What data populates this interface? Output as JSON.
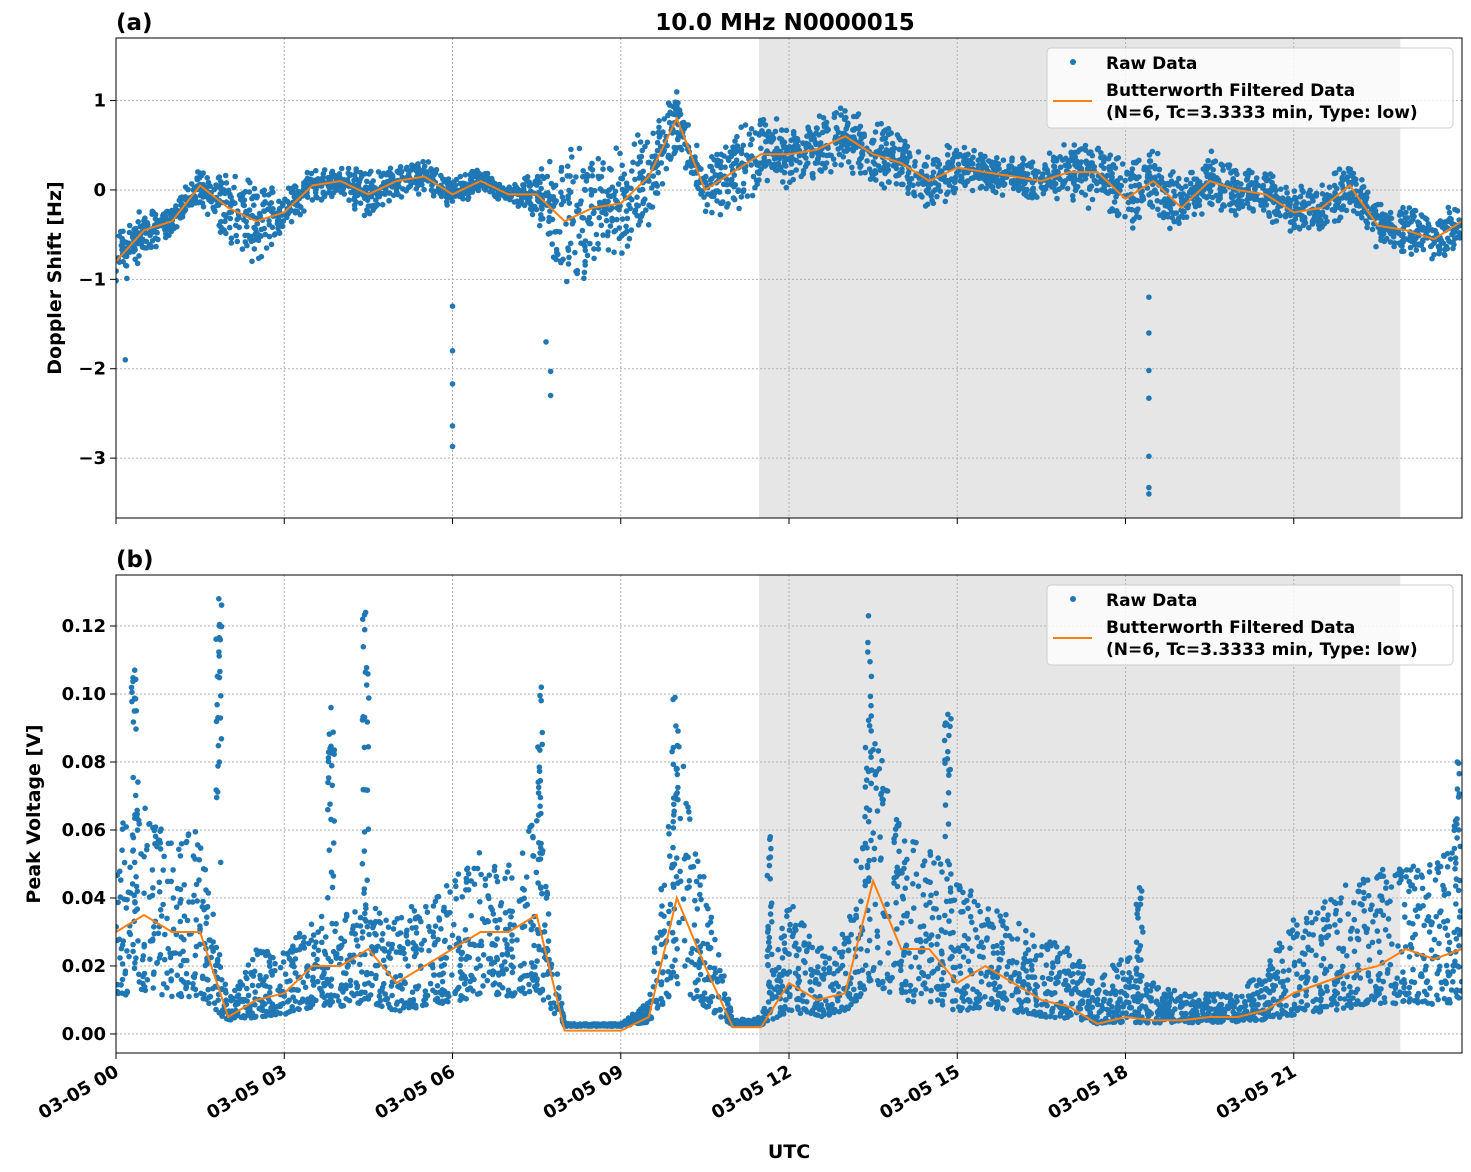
{
  "chart_data": [
    {
      "panel_label": "(a)",
      "type": "scatter+line",
      "title": "10.0 MHz N0000015",
      "xlabel": "",
      "ylabel": "Doppler Shift [Hz]",
      "ylim": [
        -3.67,
        1.7
      ],
      "xlim": [
        "03-05 00:00",
        "03-06 00:00"
      ],
      "yticks": [
        1,
        0,
        -1,
        -2,
        -3
      ],
      "ytick_labels": [
        "1",
        "0",
        "−1",
        "−2",
        "−3"
      ],
      "xticks": [
        "03-05 00:00",
        "03-05 03:00",
        "03-05 06:00",
        "03-05 09:00",
        "03-05 12:00",
        "03-05 15:00",
        "03-05 18:00",
        "03-05 21:00"
      ],
      "grid": true,
      "shaded_span": [
        "03-05 11:28",
        "03-05 22:54"
      ],
      "legend_position": "top-right",
      "legend": [
        "Raw Data",
        "Butterworth Filtered Data",
        "(N=6, Tc=3.3333 min, Type: low)"
      ],
      "colors": {
        "raw": "#1f77b4",
        "filtered": "#ff7f0e",
        "shade": "#e6e6e6"
      },
      "x": [
        "03-05 00:00",
        "03-05 00:30",
        "03-05 01:00",
        "03-05 01:30",
        "03-05 02:00",
        "03-05 02:30",
        "03-05 03:00",
        "03-05 03:30",
        "03-05 04:00",
        "03-05 04:30",
        "03-05 05:00",
        "03-05 05:30",
        "03-05 06:00",
        "03-05 06:30",
        "03-05 07:00",
        "03-05 07:30",
        "03-05 08:00",
        "03-05 08:30",
        "03-05 09:00",
        "03-05 09:30",
        "03-05 10:00",
        "03-05 10:30",
        "03-05 11:00",
        "03-05 11:30",
        "03-05 12:00",
        "03-05 12:30",
        "03-05 13:00",
        "03-05 13:30",
        "03-05 14:00",
        "03-05 14:30",
        "03-05 15:00",
        "03-05 15:30",
        "03-05 16:00",
        "03-05 16:30",
        "03-05 17:00",
        "03-05 17:30",
        "03-05 18:00",
        "03-05 18:30",
        "03-05 19:00",
        "03-05 19:30",
        "03-05 20:00",
        "03-05 20:30",
        "03-05 21:00",
        "03-05 21:30",
        "03-05 22:00",
        "03-05 22:30",
        "03-05 23:00",
        "03-05 23:30",
        "03-06 00:00"
      ],
      "series": [
        {
          "name": "Butterworth Filtered Data",
          "values": [
            -0.8,
            -0.45,
            -0.35,
            0.05,
            -0.2,
            -0.35,
            -0.25,
            0.05,
            0.1,
            -0.05,
            0.1,
            0.15,
            -0.05,
            0.1,
            -0.05,
            -0.05,
            -0.35,
            -0.2,
            -0.15,
            0.15,
            0.8,
            0.0,
            0.2,
            0.4,
            0.4,
            0.45,
            0.6,
            0.4,
            0.3,
            0.1,
            0.25,
            0.2,
            0.15,
            0.1,
            0.2,
            0.2,
            -0.1,
            0.1,
            -0.2,
            0.1,
            0.0,
            -0.05,
            -0.25,
            -0.2,
            0.05,
            -0.4,
            -0.45,
            -0.55,
            -0.35
          ]
        },
        {
          "name": "Raw Data",
          "spread": [
            0.5,
            0.3,
            0.2,
            0.2,
            0.5,
            0.5,
            0.3,
            0.2,
            0.2,
            0.3,
            0.2,
            0.2,
            0.2,
            0.15,
            0.1,
            0.3,
            0.9,
            0.8,
            0.7,
            0.6,
            0.4,
            0.3,
            0.6,
            0.5,
            0.4,
            0.4,
            0.45,
            0.4,
            0.35,
            0.35,
            0.3,
            0.25,
            0.25,
            0.3,
            0.35,
            0.45,
            0.45,
            0.4,
            0.35,
            0.35,
            0.3,
            0.3,
            0.3,
            0.3,
            0.35,
            0.3,
            0.3,
            0.35,
            0.3
          ],
          "outliers": [
            [
              "03-05 06:00",
              -2.87
            ],
            [
              "03-05 06:00",
              -2.64
            ],
            [
              "03-05 06:00",
              -2.17
            ],
            [
              "03-05 06:00",
              -1.8
            ],
            [
              "03-05 06:00",
              -1.3
            ],
            [
              "03-05 07:45",
              -2.3
            ],
            [
              "03-05 07:45",
              -2.03
            ],
            [
              "03-05 07:40",
              -1.7
            ],
            [
              "03-05 18:25",
              -3.4
            ],
            [
              "03-05 18:25",
              -3.33
            ],
            [
              "03-05 18:25",
              -2.98
            ],
            [
              "03-05 18:25",
              -2.33
            ],
            [
              "03-05 18:25",
              -2.02
            ],
            [
              "03-05 18:25",
              -1.6
            ],
            [
              "03-05 18:25",
              -1.2
            ],
            [
              "03-05 00:10",
              -1.9
            ]
          ]
        }
      ]
    },
    {
      "panel_label": "(b)",
      "type": "scatter+line",
      "xlabel": "UTC",
      "ylabel": "Peak Voltage [V]",
      "ylim": [
        -0.0056,
        0.135
      ],
      "xlim": [
        "03-05 00:00",
        "03-06 00:00"
      ],
      "yticks": [
        0,
        0.02,
        0.04,
        0.06,
        0.08,
        0.1,
        0.12
      ],
      "ytick_labels": [
        "0.00",
        "0.02",
        "0.04",
        "0.06",
        "0.08",
        "0.10",
        "0.12"
      ],
      "xticks": [
        "03-05 00:00",
        "03-05 03:00",
        "03-05 06:00",
        "03-05 09:00",
        "03-05 12:00",
        "03-05 15:00",
        "03-05 18:00",
        "03-05 21:00"
      ],
      "xtick_labels": [
        "03-05 00",
        "03-05 03",
        "03-05 06",
        "03-05 09",
        "03-05 12",
        "03-05 15",
        "03-05 18",
        "03-05 21"
      ],
      "grid": true,
      "shaded_span": [
        "03-05 11:28",
        "03-05 22:54"
      ],
      "legend_position": "top-right",
      "legend": [
        "Raw Data",
        "Butterworth Filtered Data",
        "(N=6, Tc=3.3333 min, Type: low)"
      ],
      "colors": {
        "raw": "#1f77b4",
        "filtered": "#ff7f0e",
        "shade": "#e6e6e6"
      },
      "x": [
        "03-05 00:00",
        "03-05 00:30",
        "03-05 01:00",
        "03-05 01:30",
        "03-05 02:00",
        "03-05 02:30",
        "03-05 03:00",
        "03-05 03:30",
        "03-05 04:00",
        "03-05 04:30",
        "03-05 05:00",
        "03-05 05:30",
        "03-05 06:00",
        "03-05 06:30",
        "03-05 07:00",
        "03-05 07:30",
        "03-05 08:00",
        "03-05 08:30",
        "03-05 09:00",
        "03-05 09:30",
        "03-05 10:00",
        "03-05 10:30",
        "03-05 11:00",
        "03-05 11:30",
        "03-05 12:00",
        "03-05 12:30",
        "03-05 13:00",
        "03-05 13:30",
        "03-05 14:00",
        "03-05 14:30",
        "03-05 15:00",
        "03-05 15:30",
        "03-05 16:00",
        "03-05 16:30",
        "03-05 17:00",
        "03-05 17:30",
        "03-05 18:00",
        "03-05 18:30",
        "03-05 19:00",
        "03-05 19:30",
        "03-05 20:00",
        "03-05 20:30",
        "03-05 21:00",
        "03-05 21:30",
        "03-05 22:00",
        "03-05 22:30",
        "03-05 23:00",
        "03-05 23:30",
        "03-06 00:00"
      ],
      "series": [
        {
          "name": "Butterworth Filtered Data",
          "values": [
            0.03,
            0.035,
            0.03,
            0.03,
            0.005,
            0.01,
            0.012,
            0.02,
            0.02,
            0.025,
            0.015,
            0.02,
            0.025,
            0.03,
            0.03,
            0.035,
            0.001,
            0.001,
            0.001,
            0.005,
            0.04,
            0.02,
            0.002,
            0.002,
            0.015,
            0.01,
            0.012,
            0.045,
            0.025,
            0.025,
            0.015,
            0.02,
            0.015,
            0.01,
            0.008,
            0.003,
            0.005,
            0.004,
            0.004,
            0.005,
            0.005,
            0.007,
            0.012,
            0.015,
            0.018,
            0.02,
            0.025,
            0.022,
            0.025
          ]
        },
        {
          "name": "Raw Data",
          "upper": [
            0.06,
            0.07,
            0.06,
            0.06,
            0.01,
            0.025,
            0.025,
            0.035,
            0.035,
            0.04,
            0.035,
            0.04,
            0.045,
            0.055,
            0.05,
            0.065,
            0.003,
            0.003,
            0.003,
            0.01,
            0.09,
            0.045,
            0.004,
            0.005,
            0.04,
            0.025,
            0.03,
            0.09,
            0.06,
            0.055,
            0.045,
            0.04,
            0.035,
            0.03,
            0.025,
            0.015,
            0.025,
            0.015,
            0.012,
            0.012,
            0.012,
            0.02,
            0.035,
            0.04,
            0.045,
            0.05,
            0.05,
            0.05,
            0.06
          ],
          "spikes": [
            [
              "03-05 00:20",
              0.107
            ],
            [
              "03-05 01:50",
              0.128
            ],
            [
              "03-05 03:50",
              0.096
            ],
            [
              "03-05 04:27",
              0.124
            ],
            [
              "03-05 07:35",
              0.102
            ],
            [
              "03-05 09:58",
              0.099
            ],
            [
              "03-05 13:25",
              0.123
            ],
            [
              "03-05 14:50",
              0.094
            ],
            [
              "03-05 23:55",
              0.08
            ],
            [
              "03-05 11:40",
              0.058
            ],
            [
              "03-05 18:15",
              0.043
            ]
          ]
        }
      ]
    }
  ]
}
